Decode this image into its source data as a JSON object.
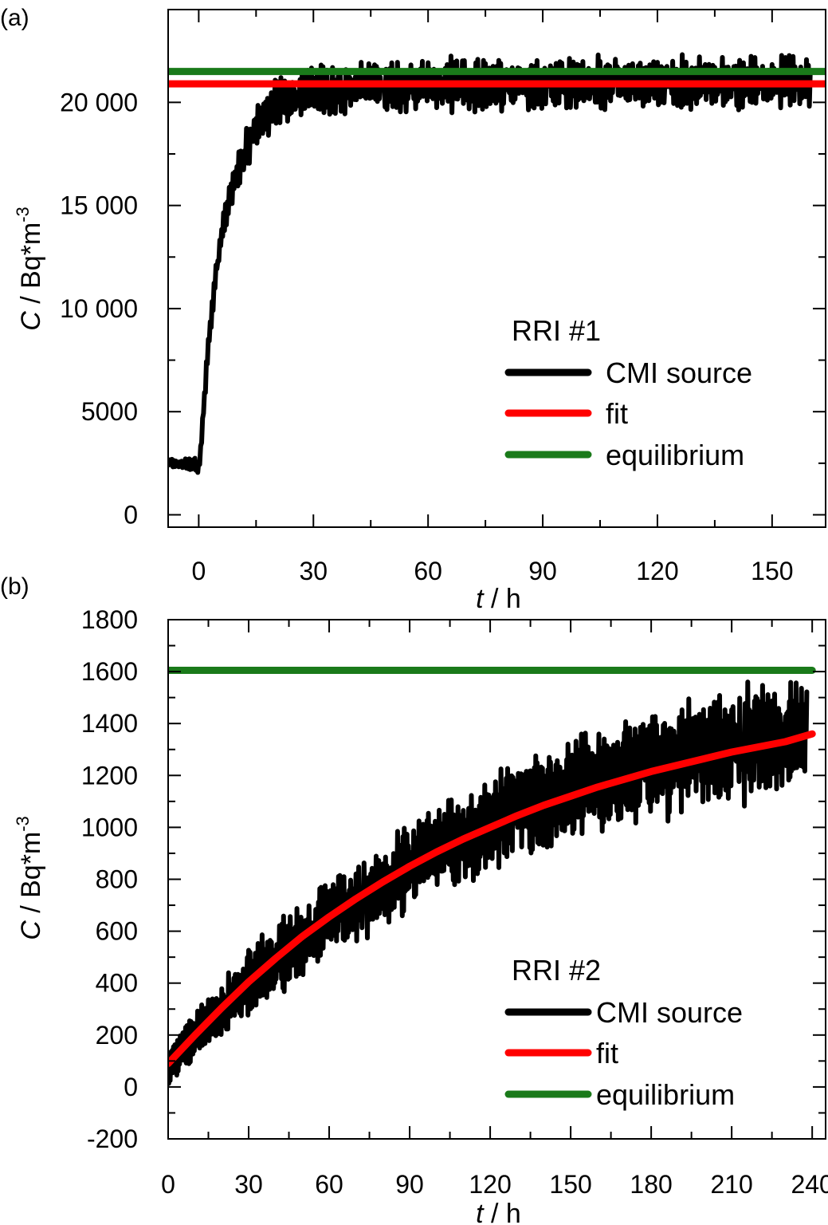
{
  "chart_data": [
    {
      "panel_label": "(a)",
      "type": "line",
      "xlabel_italic": "t",
      "xlabel_unit": " / h",
      "ylabel_italic": "C",
      "ylabel_unit": " / Bq*m",
      "ylabel_exp": "-3",
      "xlim": [
        -8,
        164
      ],
      "ylim": [
        -600,
        24500
      ],
      "xticks": [
        0,
        30,
        60,
        90,
        120,
        150
      ],
      "xtick_labels": [
        "0",
        "30",
        "60",
        "90",
        "120",
        "150"
      ],
      "yticks": [
        0,
        5000,
        10000,
        15000,
        20000
      ],
      "ytick_labels": [
        "0",
        "5000",
        "10 000",
        "15 000",
        "20 000"
      ],
      "grid": false,
      "legend_position": "lower-right",
      "legend_title": "RRI #1",
      "series": [
        {
          "name": "CMI source",
          "color": "#000000",
          "x": [
            -8,
            -4,
            0,
            0.5,
            2,
            4,
            6,
            8,
            10,
            12,
            14,
            16,
            18,
            20,
            25,
            30,
            40,
            50,
            60,
            70,
            80,
            90,
            100,
            110,
            120,
            130,
            140,
            150,
            160
          ],
          "y": [
            2500,
            2500,
            2450,
            3000,
            7000,
            11000,
            13500,
            15300,
            16600,
            17600,
            18400,
            19100,
            19500,
            19900,
            20300,
            20500,
            20700,
            20800,
            20850,
            20850,
            20900,
            20900,
            20900,
            20950,
            20950,
            20950,
            20950,
            21000,
            21000
          ],
          "noise_amplitude": [
            200,
            200,
            400,
            400,
            500,
            600,
            700,
            800,
            900,
            1000,
            1000,
            1100,
            1100,
            1100,
            1100,
            1100,
            1100,
            1100,
            1100,
            1100,
            1100,
            1100,
            1100,
            1100,
            1100,
            1100,
            1100,
            1100,
            1100
          ]
        },
        {
          "name": "fit",
          "color": "#ff0000",
          "x": [
            -8,
            164
          ],
          "y": [
            20900,
            20900
          ]
        },
        {
          "name": "equilibrium",
          "color": "#1a7a1a",
          "x": [
            -8,
            164
          ],
          "y": [
            21500,
            21500
          ]
        }
      ]
    },
    {
      "panel_label": "(b)",
      "type": "line",
      "xlabel_italic": "t",
      "xlabel_unit": " / h",
      "ylabel_italic": "C",
      "ylabel_unit": " / Bq*m",
      "ylabel_exp": "-3",
      "xlim": [
        0,
        245
      ],
      "ylim": [
        -200,
        1800
      ],
      "xticks": [
        0,
        30,
        60,
        90,
        120,
        150,
        180,
        210,
        240
      ],
      "xtick_labels": [
        "0",
        "30",
        "60",
        "90",
        "120",
        "150",
        "180",
        "210",
        "240"
      ],
      "yticks": [
        -200,
        0,
        200,
        400,
        600,
        800,
        1000,
        1200,
        1400,
        1600,
        1800
      ],
      "ytick_labels": [
        "-200",
        "0",
        "200",
        "400",
        "600",
        "800",
        "1000",
        "1200",
        "1400",
        "1600",
        "1800"
      ],
      "grid": false,
      "legend_position": "lower-right",
      "legend_title": "RRI #2",
      "series": [
        {
          "name": "CMI source",
          "color": "#000000",
          "x": [
            0,
            10,
            20,
            30,
            40,
            50,
            60,
            70,
            80,
            90,
            100,
            110,
            120,
            130,
            140,
            150,
            160,
            170,
            180,
            190,
            200,
            210,
            220,
            230,
            238
          ],
          "y": [
            80,
            200,
            300,
            400,
            490,
            570,
            640,
            710,
            780,
            850,
            910,
            960,
            1010,
            1060,
            1100,
            1140,
            1180,
            1210,
            1240,
            1270,
            1290,
            1310,
            1330,
            1350,
            1360
          ],
          "noise_amplitude": [
            60,
            80,
            90,
            110,
            120,
            130,
            130,
            130,
            140,
            140,
            140,
            150,
            150,
            160,
            160,
            160,
            170,
            170,
            180,
            190,
            190,
            200,
            200,
            200,
            200
          ]
        },
        {
          "name": "fit",
          "color": "#ff0000",
          "x": [
            0,
            10,
            20,
            30,
            40,
            50,
            60,
            70,
            80,
            90,
            100,
            110,
            120,
            130,
            140,
            150,
            160,
            170,
            180,
            190,
            200,
            210,
            220,
            230,
            240
          ],
          "y": [
            90,
            200,
            305,
            405,
            495,
            580,
            655,
            725,
            790,
            850,
            905,
            955,
            1000,
            1045,
            1085,
            1120,
            1155,
            1185,
            1215,
            1240,
            1265,
            1290,
            1310,
            1330,
            1360
          ]
        },
        {
          "name": "equilibrium",
          "color": "#1a7a1a",
          "x": [
            0,
            240
          ],
          "y": [
            1605,
            1605
          ]
        }
      ]
    }
  ]
}
